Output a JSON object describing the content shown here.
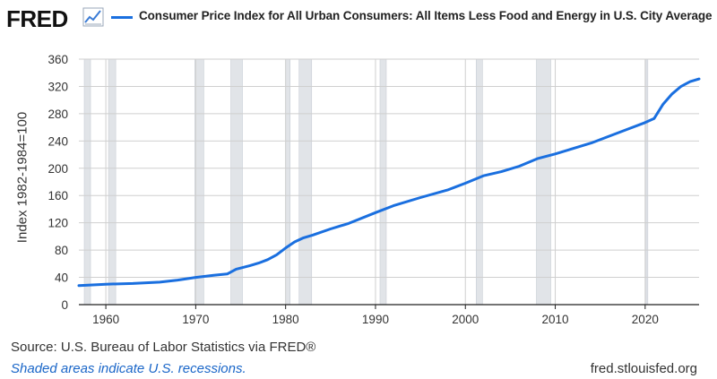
{
  "header": {
    "logo_text": "FRED",
    "logo_icon": "line-chart-icon"
  },
  "source": {
    "prefix": "Source: U.S. Bureau of Labor Statistics",
    "suffix": " via FRED®"
  },
  "recession_note": "Shaded areas indicate U.S. recessions.",
  "site": "fred.stlouisfed.org",
  "colors": {
    "series": "#1a6fdf",
    "recession": "#e1e4e8",
    "grid": "#cfcfcf",
    "axis": "#222222"
  },
  "chart_data": {
    "type": "line",
    "title": "",
    "ylabel": "Index 1982-1984=100",
    "xlabel": "",
    "xlim": [
      1957.0,
      2026.0
    ],
    "ylim": [
      0,
      360
    ],
    "y_ticks": [
      0,
      40,
      80,
      120,
      160,
      200,
      240,
      280,
      320,
      360
    ],
    "x_ticks": [
      1960,
      1970,
      1980,
      1990,
      2000,
      2010,
      2020
    ],
    "grid": true,
    "legend_position": "top",
    "recessions": [
      [
        1957.6,
        1958.3
      ],
      [
        1960.3,
        1961.1
      ],
      [
        1969.9,
        1970.9
      ],
      [
        1973.9,
        1975.2
      ],
      [
        1980.0,
        1980.5
      ],
      [
        1981.5,
        1982.9
      ],
      [
        1990.5,
        1991.2
      ],
      [
        2001.2,
        2001.9
      ],
      [
        2007.9,
        2009.5
      ],
      [
        2020.1,
        2020.3
      ]
    ],
    "series": [
      {
        "name": "Consumer Price Index for All Urban Consumers: All Items Less Food and Energy in U.S. City Average",
        "x": [
          1957.0,
          1960,
          1963,
          1966,
          1968,
          1970,
          1972,
          1973.5,
          1974.5,
          1976,
          1977,
          1978,
          1979,
          1980,
          1981,
          1982,
          1983,
          1985,
          1987,
          1990,
          1992,
          1995,
          1998,
          2000,
          2002,
          2004,
          2006,
          2008,
          2010,
          2012,
          2014,
          2016,
          2018,
          2020,
          2021,
          2022,
          2023,
          2024,
          2025,
          2026.0
        ],
        "y": [
          28,
          30,
          31,
          33,
          36,
          40,
          43,
          45,
          52,
          57,
          61,
          66,
          73,
          83,
          92,
          98,
          102,
          111,
          119,
          135,
          145,
          157,
          168,
          178,
          189,
          195,
          203,
          214,
          221,
          229,
          237,
          247,
          257,
          267,
          273,
          294,
          309,
          320,
          327,
          331
        ]
      }
    ]
  }
}
